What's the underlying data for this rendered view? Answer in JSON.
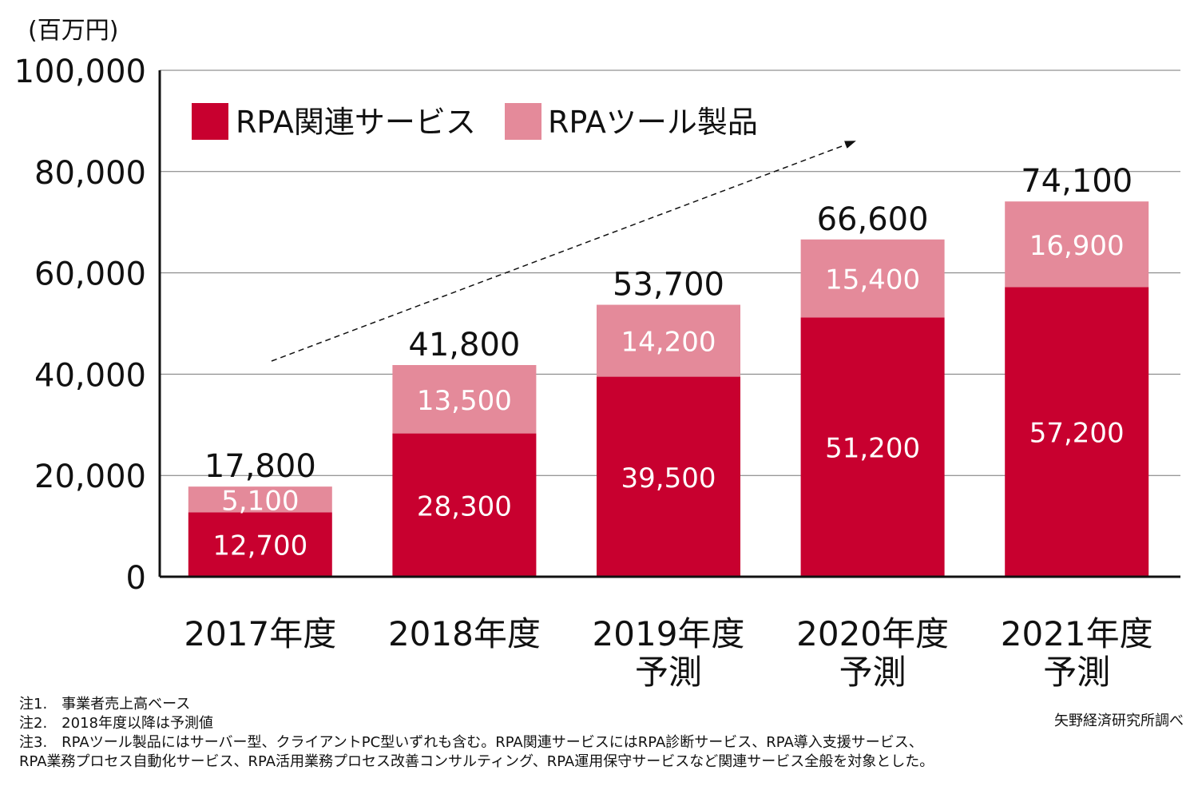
{
  "chart_data": {
    "type": "bar",
    "stacked": true,
    "unit_label": "(百万円)",
    "ylim": [
      0,
      100000
    ],
    "yticks": [
      "0",
      "20,000",
      "40,000",
      "60,000",
      "80,000",
      "100,000"
    ],
    "grid": true,
    "categories": [
      [
        "2017年度"
      ],
      [
        "2018年度"
      ],
      [
        "2019年度",
        "予測"
      ],
      [
        "2020年度",
        "予測"
      ],
      [
        "2021年度",
        "予測"
      ]
    ],
    "series": [
      {
        "name": "RPA関連サービス",
        "color": "#c8002f",
        "values": [
          12700,
          28300,
          39500,
          51200,
          57200
        ],
        "labels": [
          "12,700",
          "28,300",
          "39,500",
          "51,200",
          "57,200"
        ]
      },
      {
        "name": "RPAツール製品",
        "color": "#e48a9a",
        "values": [
          5100,
          13500,
          14200,
          15400,
          16900
        ],
        "labels": [
          "5,100",
          "13,500",
          "14,200",
          "15,400",
          "16,900"
        ]
      }
    ],
    "totals": [
      17800,
      41800,
      53700,
      66600,
      74100
    ],
    "total_labels": [
      "17,800",
      "41,800",
      "53,700",
      "66,600",
      "74,100"
    ],
    "legend_position": "top-left",
    "annotation": "dashed upward trend arrow"
  },
  "notes": [
    "注1.　事業者売上高ベース",
    "注2.　2018年度以降は予測値",
    "注3.　RPAツール製品にはサーバー型、クライアントPC型いずれも含む。RPA関連サービスにはRPA診断サービス、RPA導入支援サービス、",
    "RPA業務プロセス自動化サービス、RPA活用業務プロセス改善コンサルティング、RPA運用保守サービスなど関連サービス全般を対象とした。"
  ],
  "source": "矢野経済研究所調べ"
}
